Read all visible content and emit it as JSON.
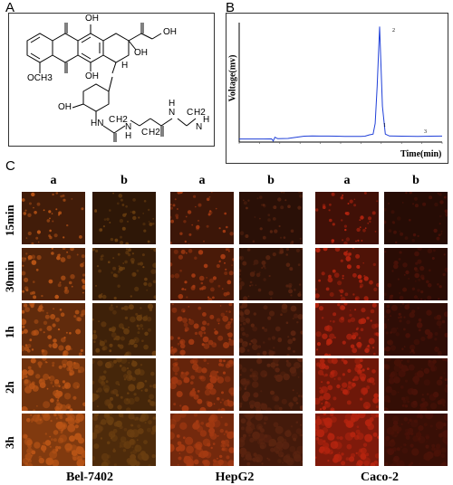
{
  "panels": {
    "a_label": "A",
    "b_label": "B",
    "c_label": "C"
  },
  "structure": {
    "oh_top_center": "OH",
    "oh_right_chain": "OH",
    "oh_ring": "OH",
    "h_ring": "H",
    "oh_lower": "OH",
    "och3": "OCH3",
    "oh_sugar": "OH",
    "hn": "HN",
    "h2_a": "H2",
    "h2_b": "H2",
    "h2_c": "H2",
    "c_a": "C",
    "c_b": "C",
    "c_c": "C",
    "n_a": "N",
    "n_b": "N",
    "n_c": "N",
    "h_a": "H",
    "h_b": "H",
    "n_end": "N",
    "h_end": "H"
  },
  "chart_data": {
    "type": "line",
    "title": "",
    "xlabel": "Time(min)",
    "ylabel": "Voltage(mv)",
    "peak_labels": [
      "1",
      "2",
      "3"
    ],
    "series": [
      {
        "x": [
          0,
          3,
          6,
          8,
          8.4,
          8.8,
          9.5,
          12,
          14,
          16,
          18,
          20,
          22,
          24,
          26,
          28,
          30,
          31,
          32,
          33,
          33.5,
          34,
          34.6,
          35.3,
          36,
          37,
          40,
          44,
          47,
          50
        ],
        "y": [
          0.3,
          0.3,
          0.3,
          0.4,
          -1.2,
          1.6,
          0.5,
          0.7,
          1.6,
          2.4,
          2.6,
          2.5,
          2.5,
          2.4,
          2.3,
          2.2,
          2.2,
          2.4,
          3.4,
          4,
          12,
          40,
          85,
          25,
          4,
          2.6,
          2.4,
          2.3,
          2.4,
          2.5
        ]
      }
    ]
  },
  "grid": {
    "col_headers": [
      "a",
      "b",
      "a",
      "b",
      "a",
      "b"
    ],
    "row_labels": [
      "15min",
      "30min",
      "1h",
      "2h",
      "3h"
    ],
    "groups": [
      "Bel-7402",
      "HepG2",
      "Caco-2"
    ],
    "colors": {
      "bel_a": "#b85416",
      "bel_b": "#6a3e10",
      "hep_a": "#a43a12",
      "hep_b": "#5a2410",
      "caco_a": "#b5240f",
      "caco_b": "#4a1208"
    }
  }
}
